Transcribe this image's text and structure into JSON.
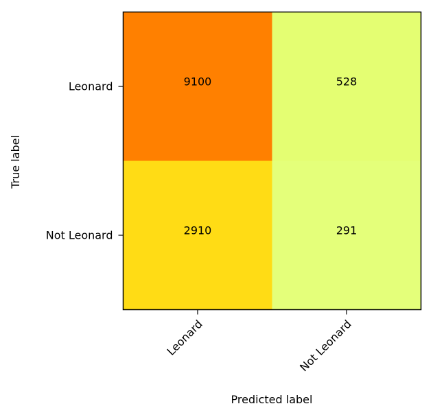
{
  "chart_data": {
    "type": "heatmap",
    "title": "",
    "xlabel": "Predicted label",
    "ylabel": "True label",
    "x_categories": [
      "Leonard",
      "Not Leonard"
    ],
    "y_categories": [
      "Leonard",
      "Not Leonard"
    ],
    "values": [
      [
        9100,
        528
      ],
      [
        2910,
        291
      ]
    ],
    "colormap": "Wistia",
    "cell_colors": [
      [
        "#ff8000",
        "#e4fe72"
      ],
      [
        "#ffdc15",
        "#e4ff7a"
      ]
    ],
    "colorbar": false,
    "x_tick_rotation_deg": 45
  }
}
